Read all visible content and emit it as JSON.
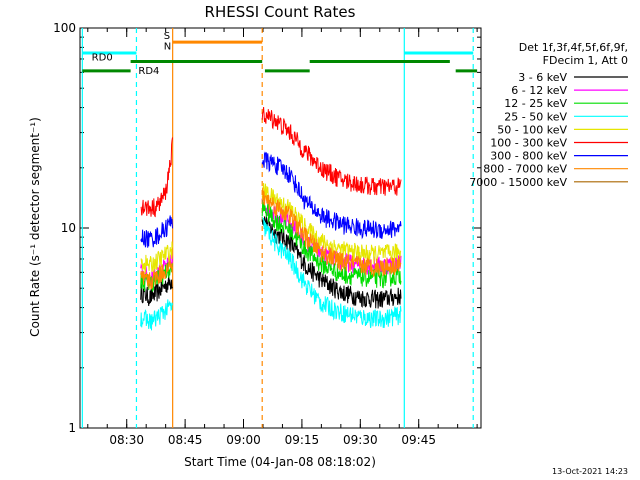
{
  "chart_data": {
    "type": "line",
    "title": "RHESSI Count Rates",
    "xlabel": "Start Time (04-Jan-08 08:18:02)",
    "ylabel": "Count Rate (s⁻¹ detector segment⁻¹)",
    "ylim": [
      1,
      100
    ],
    "yscale": "log",
    "xlim_min": [
      18,
      121
    ],
    "x_ticks": [
      {
        "min": 30,
        "label": "08:30"
      },
      {
        "min": 45,
        "label": "08:45"
      },
      {
        "min": 60,
        "label": "09:00"
      },
      {
        "min": 75,
        "label": "09:15"
      },
      {
        "min": 90,
        "label": "09:30"
      },
      {
        "min": 105,
        "label": "09:45"
      }
    ],
    "y_ticks": [
      {
        "val": 1,
        "label": "1"
      },
      {
        "val": 10,
        "label": "10"
      },
      {
        "val": 100,
        "label": "100"
      }
    ],
    "legend": {
      "header": [
        "Det 1f,3f,4f,5f,6f,9f,",
        "FDecim 1, Att 0"
      ],
      "placement": "right",
      "entries": [
        {
          "label": "3 - 6 keV",
          "color": "#000000"
        },
        {
          "label": "6 - 12 keV",
          "color": "#ff00ff"
        },
        {
          "label": "12 - 25 keV",
          "color": "#00dd00"
        },
        {
          "label": "25 - 50 keV",
          "color": "#00ffff"
        },
        {
          "label": "50 - 100 keV",
          "color": "#e6e600"
        },
        {
          "label": "100 - 300 keV",
          "color": "#ff0000"
        },
        {
          "label": "300 - 800 keV",
          "color": "#0000ff"
        },
        {
          "label": "800 - 7000 keV",
          "color": "#ff8800"
        },
        {
          "label": "7000 - 15000 keV",
          "color": "#aa6600"
        }
      ]
    },
    "segments": [
      {
        "start": 33.6,
        "end": 41.8
      },
      {
        "start": 64.8,
        "end": 100.5
      }
    ],
    "series": [
      {
        "name": "3 - 6 keV",
        "color": "#000000",
        "values": [
          [
            33.6,
            4.8
          ],
          [
            36,
            4.5
          ],
          [
            38,
            4.8
          ],
          [
            40,
            5.2
          ],
          [
            41.8,
            5.5
          ],
          [
            64.8,
            11.2
          ],
          [
            68,
            9.5
          ],
          [
            72,
            8.5
          ],
          [
            76,
            6.5
          ],
          [
            80,
            5.5
          ],
          [
            85,
            4.8
          ],
          [
            90,
            4.5
          ],
          [
            95,
            4.4
          ],
          [
            100.5,
            4.6
          ]
        ]
      },
      {
        "name": "6 - 12 keV",
        "color": "#ff00ff",
        "values": [
          [
            33.6,
            6.0
          ],
          [
            36,
            5.7
          ],
          [
            38,
            6.0
          ],
          [
            40,
            6.4
          ],
          [
            41.8,
            6.8
          ],
          [
            64.8,
            13.5
          ],
          [
            68,
            12.0
          ],
          [
            72,
            10.5
          ],
          [
            76,
            8.5
          ],
          [
            80,
            7.5
          ],
          [
            85,
            6.8
          ],
          [
            90,
            6.6
          ],
          [
            95,
            6.5
          ],
          [
            100.5,
            6.7
          ]
        ]
      },
      {
        "name": "12 - 25 keV",
        "color": "#00dd00",
        "values": [
          [
            33.6,
            5.5
          ],
          [
            36,
            5.3
          ],
          [
            38,
            5.6
          ],
          [
            40,
            6.0
          ],
          [
            41.8,
            6.3
          ],
          [
            64.8,
            12.8
          ],
          [
            68,
            11.0
          ],
          [
            72,
            9.8
          ],
          [
            76,
            7.8
          ],
          [
            80,
            6.6
          ],
          [
            85,
            5.9
          ],
          [
            90,
            5.7
          ],
          [
            95,
            5.6
          ],
          [
            100.5,
            5.8
          ]
        ]
      },
      {
        "name": "25 - 50 keV",
        "color": "#00ffff",
        "values": [
          [
            33.6,
            3.6
          ],
          [
            36,
            3.4
          ],
          [
            38,
            3.6
          ],
          [
            40,
            3.9
          ],
          [
            41.8,
            4.1
          ],
          [
            64.8,
            10.5
          ],
          [
            68,
            8.5
          ],
          [
            72,
            7.0
          ],
          [
            76,
            5.2
          ],
          [
            80,
            4.2
          ],
          [
            85,
            3.8
          ],
          [
            90,
            3.6
          ],
          [
            95,
            3.5
          ],
          [
            100.5,
            3.7
          ]
        ]
      },
      {
        "name": "50 - 100 keV",
        "color": "#e6e600",
        "values": [
          [
            33.6,
            6.8
          ],
          [
            36,
            6.5
          ],
          [
            38,
            6.9
          ],
          [
            40,
            7.4
          ],
          [
            41.8,
            7.8
          ],
          [
            64.8,
            15.5
          ],
          [
            68,
            14.0
          ],
          [
            72,
            12.5
          ],
          [
            76,
            10.0
          ],
          [
            80,
            8.6
          ],
          [
            85,
            7.8
          ],
          [
            90,
            7.5
          ],
          [
            95,
            7.4
          ],
          [
            100.5,
            7.6
          ]
        ]
      },
      {
        "name": "100 - 300 keV",
        "color": "#ff0000",
        "values": [
          [
            33.6,
            13.0
          ],
          [
            36,
            12.5
          ],
          [
            38,
            13.0
          ],
          [
            40,
            15.0
          ],
          [
            41.8,
            26.0
          ],
          [
            64.8,
            37.0
          ],
          [
            68,
            35.0
          ],
          [
            72,
            30.0
          ],
          [
            76,
            24.0
          ],
          [
            80,
            20.0
          ],
          [
            85,
            17.5
          ],
          [
            90,
            16.5
          ],
          [
            95,
            16.0
          ],
          [
            100.5,
            16.2
          ]
        ]
      },
      {
        "name": "300 - 800 keV",
        "color": "#0000ff",
        "values": [
          [
            33.6,
            9.0
          ],
          [
            36,
            8.8
          ],
          [
            38,
            9.2
          ],
          [
            40,
            10.0
          ],
          [
            41.8,
            11.0
          ],
          [
            64.8,
            22.0
          ],
          [
            68,
            21.0
          ],
          [
            72,
            18.5
          ],
          [
            76,
            13.5
          ],
          [
            80,
            11.5
          ],
          [
            85,
            10.5
          ],
          [
            90,
            10.0
          ],
          [
            95,
            9.8
          ],
          [
            100.5,
            10.0
          ]
        ]
      },
      {
        "name": "800 - 7000 keV",
        "color": "#ff8800",
        "values": [
          [
            33.6,
            5.6
          ],
          [
            36,
            5.4
          ],
          [
            38,
            5.8
          ],
          [
            40,
            6.2
          ],
          [
            41.8,
            6.5
          ],
          [
            64.8,
            14.5
          ],
          [
            68,
            13.0
          ],
          [
            72,
            11.5
          ],
          [
            76,
            9.0
          ],
          [
            80,
            7.6
          ],
          [
            85,
            6.8
          ],
          [
            90,
            6.5
          ],
          [
            95,
            6.4
          ],
          [
            100.5,
            6.6
          ]
        ]
      }
    ],
    "vlines": [
      {
        "min": 18.6,
        "color": "#00ffff",
        "style": "solid"
      },
      {
        "min": 32.5,
        "color": "#00ffff",
        "style": "dashed"
      },
      {
        "min": 41.8,
        "color": "#ff8800",
        "style": "solid"
      },
      {
        "min": 64.8,
        "color": "#ff8800",
        "style": "dashed"
      },
      {
        "min": 101.3,
        "color": "#00ffff",
        "style": "solid"
      },
      {
        "min": 119.0,
        "color": "#00ffff",
        "style": "dashed"
      }
    ],
    "bars": [
      {
        "min_start": 18.6,
        "min_end": 32.5,
        "level": 75,
        "color": "#00ffff"
      },
      {
        "min_start": 101.3,
        "min_end": 119.0,
        "level": 75,
        "color": "#00ffff"
      },
      {
        "min_start": 41.8,
        "min_end": 64.8,
        "level": 85,
        "color": "#ff8800"
      },
      {
        "min_start": 18.6,
        "min_end": 31.0,
        "level": 61,
        "color": "#008800"
      },
      {
        "min_start": 31.0,
        "min_end": 64.8,
        "level": 68,
        "color": "#008800"
      },
      {
        "min_start": 65.5,
        "min_end": 77.0,
        "level": 61,
        "color": "#008800"
      },
      {
        "min_start": 77.0,
        "min_end": 113.0,
        "level": 68,
        "color": "#008800"
      },
      {
        "min_start": 114.5,
        "min_end": 120.0,
        "level": 61,
        "color": "#008800"
      }
    ],
    "annotations": [
      {
        "text": "RD0",
        "min": 21.0,
        "level": 71
      },
      {
        "text": "RD4",
        "min": 33.0,
        "level": 61
      },
      {
        "text": "S",
        "min": 39.5,
        "level": 91,
        "color": "#ff8800"
      },
      {
        "text": "N",
        "min": 39.5,
        "level": 81,
        "color": "#00ffff"
      }
    ]
  },
  "footer": {
    "timestamp": "13-Oct-2021 14:23"
  }
}
